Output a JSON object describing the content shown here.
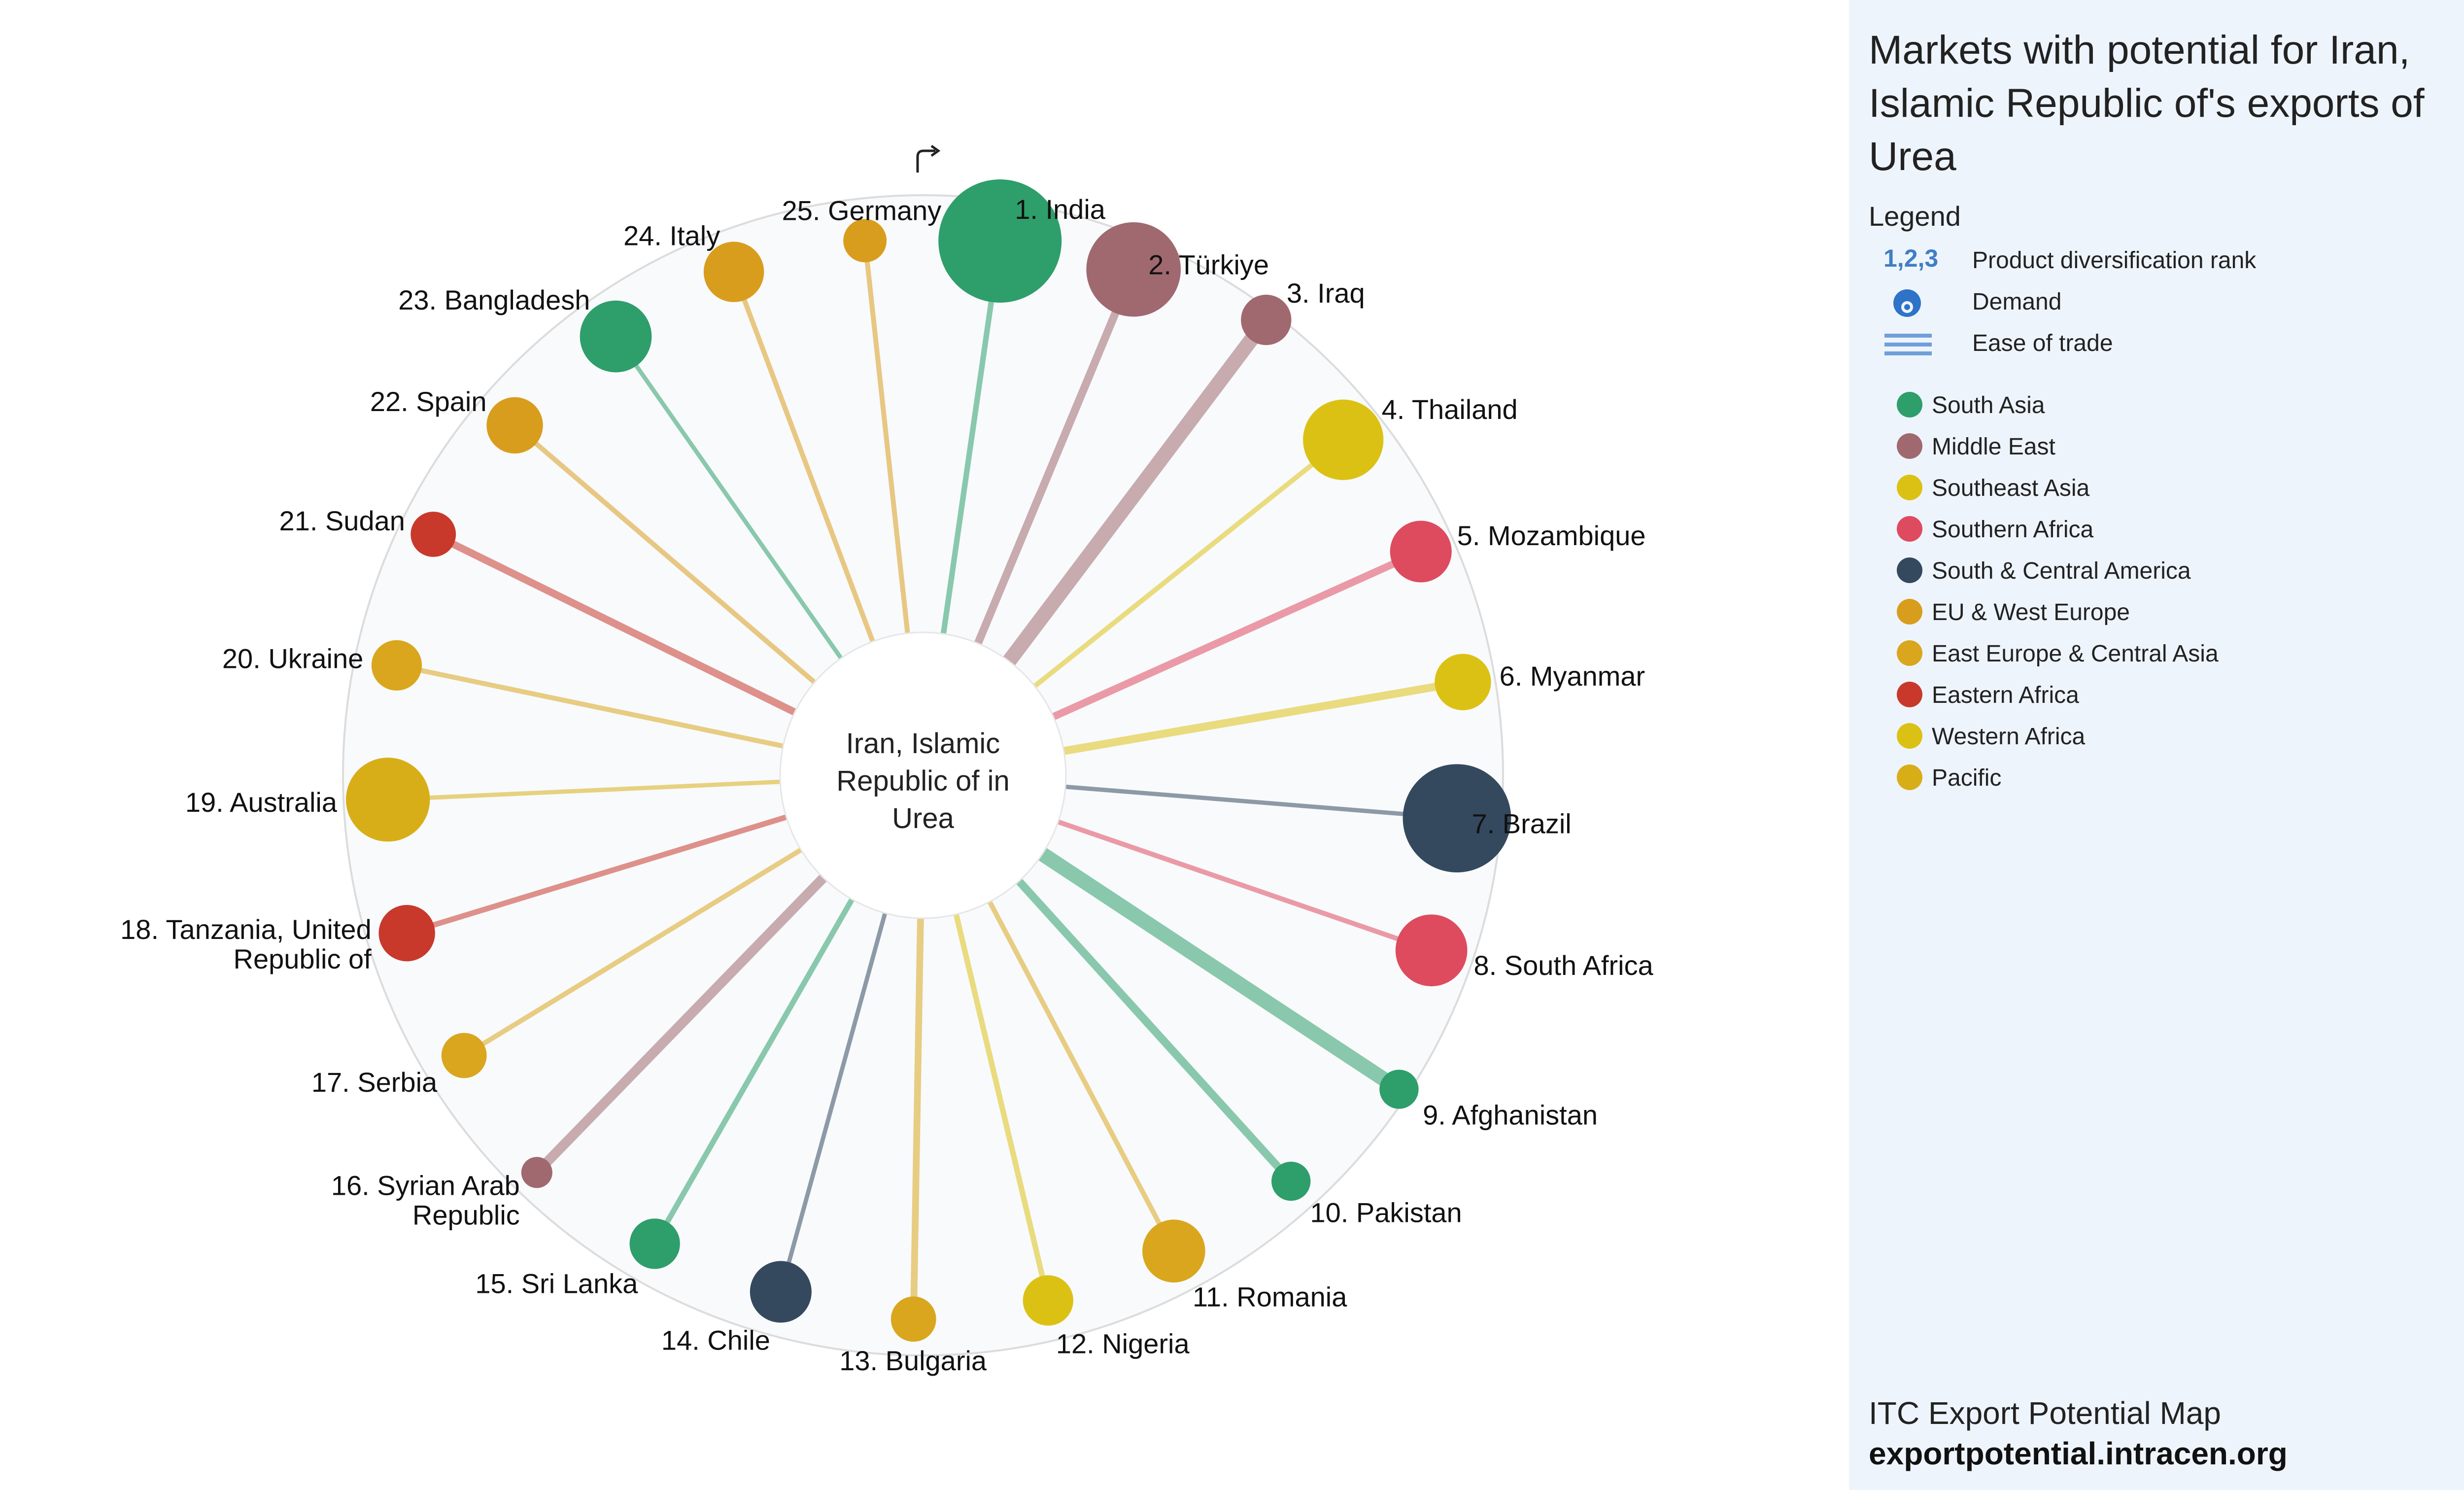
{
  "title": "Markets with potential for Iran, Islamic Republic of's exports of Urea",
  "legend": {
    "heading": "Legend",
    "items": [
      {
        "icon": "rank-numbers-icon",
        "glyph": "1,2,3",
        "label": "Product diversification rank"
      },
      {
        "icon": "demand-circle-icon",
        "label": "Demand"
      },
      {
        "icon": "ease-of-trade-lines-icon",
        "label": "Ease of trade"
      }
    ],
    "regions": [
      {
        "name": "South Asia",
        "color": "#2e9e6b"
      },
      {
        "name": "Middle East",
        "color": "#a0696f"
      },
      {
        "name": "Southeast Asia",
        "color": "#dcc115"
      },
      {
        "name": "Southern Africa",
        "color": "#de4b5e"
      },
      {
        "name": "South & Central America",
        "color": "#34495e"
      },
      {
        "name": "EU & West Europe",
        "color": "#d99d1d"
      },
      {
        "name": "East Europe & Central Asia",
        "color": "#d9a61d"
      },
      {
        "name": "Eastern Africa",
        "color": "#c8392b"
      },
      {
        "name": "Western Africa",
        "color": "#dcc115"
      },
      {
        "name": "Pacific",
        "color": "#d8ae18"
      }
    ]
  },
  "footer": {
    "line1": "ITC Export Potential Map",
    "line2": "exportpotential.intracen.org"
  },
  "chart_data": {
    "type": "radial",
    "center_label": [
      "Iran, Islamic",
      "Republic of in",
      "Urea"
    ],
    "markets": [
      {
        "rank": 1,
        "name": "India",
        "label": [
          "1. India"
        ],
        "region": "South Asia",
        "demand": 1.0,
        "ease": 0.25
      },
      {
        "rank": 2,
        "name": "Türkiye",
        "label": [
          "2. Türkiye"
        ],
        "region": "Middle East",
        "demand": 0.55,
        "ease": 0.45
      },
      {
        "rank": 3,
        "name": "Iraq",
        "label": [
          "3. Iraq"
        ],
        "region": "Middle East",
        "demand": 0.12,
        "ease": 1.0
      },
      {
        "rank": 4,
        "name": "Thailand",
        "label": [
          "4. Thailand"
        ],
        "region": "Southeast Asia",
        "demand": 0.38,
        "ease": 0.2
      },
      {
        "rank": 5,
        "name": "Mozambique",
        "label": [
          "5. Mozambique"
        ],
        "region": "Southern Africa",
        "demand": 0.2,
        "ease": 0.4
      },
      {
        "rank": 6,
        "name": "Myanmar",
        "label": [
          "6. Myanmar"
        ],
        "region": "Southeast Asia",
        "demand": 0.16,
        "ease": 0.45
      },
      {
        "rank": 7,
        "name": "Brazil",
        "label": [
          "7. Brazil"
        ],
        "region": "South & Central America",
        "demand": 0.75,
        "ease": 0.15
      },
      {
        "rank": 8,
        "name": "South Africa",
        "label": [
          "8. South Africa"
        ],
        "region": "Southern Africa",
        "demand": 0.29,
        "ease": 0.2
      },
      {
        "rank": 9,
        "name": "Afghanistan",
        "label": [
          "9. Afghanistan"
        ],
        "region": "South Asia",
        "demand": 0.06,
        "ease": 1.0
      },
      {
        "rank": 10,
        "name": "Pakistan",
        "label": [
          "10. Pakistan"
        ],
        "region": "South Asia",
        "demand": 0.06,
        "ease": 0.45
      },
      {
        "rank": 11,
        "name": "Romania",
        "label": [
          "11. Romania"
        ],
        "region": "East Europe & Central Asia",
        "demand": 0.21,
        "ease": 0.2
      },
      {
        "rank": 12,
        "name": "Nigeria",
        "label": [
          "12. Nigeria"
        ],
        "region": "Western Africa",
        "demand": 0.12,
        "ease": 0.25
      },
      {
        "rank": 13,
        "name": "Bulgaria",
        "label": [
          "13. Bulgaria"
        ],
        "region": "East Europe & Central Asia",
        "demand": 0.09,
        "ease": 0.35
      },
      {
        "rank": 14,
        "name": "Chile",
        "label": [
          "14. Chile"
        ],
        "region": "South & Central America",
        "demand": 0.2,
        "ease": 0.15
      },
      {
        "rank": 15,
        "name": "Sri Lanka",
        "label": [
          "15. Sri Lanka"
        ],
        "region": "South Asia",
        "demand": 0.12,
        "ease": 0.25
      },
      {
        "rank": 16,
        "name": "Syrian Arab Republic",
        "label": [
          "16. Syrian Arab",
          "Republic"
        ],
        "region": "Middle East",
        "demand": 0.03,
        "ease": 0.6
      },
      {
        "rank": 17,
        "name": "Serbia",
        "label": [
          "17. Serbia"
        ],
        "region": "East Europe & Central Asia",
        "demand": 0.09,
        "ease": 0.2
      },
      {
        "rank": 18,
        "name": "Tanzania, United Republic of",
        "label": [
          "18. Tanzania, United",
          "Republic of"
        ],
        "region": "Eastern Africa",
        "demand": 0.16,
        "ease": 0.25
      },
      {
        "rank": 19,
        "name": "Australia",
        "label": [
          "19. Australia"
        ],
        "region": "Pacific",
        "demand": 0.42,
        "ease": 0.15
      },
      {
        "rank": 20,
        "name": "Ukraine",
        "label": [
          "20. Ukraine"
        ],
        "region": "East Europe & Central Asia",
        "demand": 0.12,
        "ease": 0.2
      },
      {
        "rank": 21,
        "name": "Sudan",
        "label": [
          "21. Sudan"
        ],
        "region": "Eastern Africa",
        "demand": 0.09,
        "ease": 0.4
      },
      {
        "rank": 22,
        "name": "Spain",
        "label": [
          "22. Spain"
        ],
        "region": "EU & West Europe",
        "demand": 0.16,
        "ease": 0.2
      },
      {
        "rank": 23,
        "name": "Bangladesh",
        "label": [
          "23. Bangladesh"
        ],
        "region": "South Asia",
        "demand": 0.29,
        "ease": 0.15
      },
      {
        "rank": 24,
        "name": "Italy",
        "label": [
          "24. Italy"
        ],
        "region": "EU & West Europe",
        "demand": 0.19,
        "ease": 0.2
      },
      {
        "rank": 25,
        "name": "Germany",
        "label": [
          "25. Germany"
        ],
        "region": "EU & West Europe",
        "demand": 0.08,
        "ease": 0.2
      }
    ]
  }
}
